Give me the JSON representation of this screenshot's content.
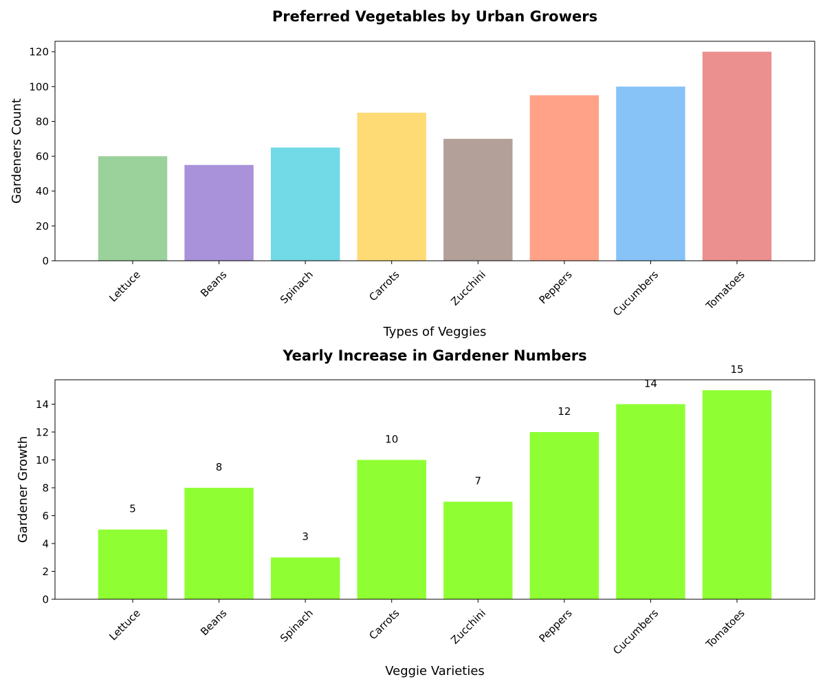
{
  "chart_data": [
    {
      "type": "bar",
      "title": "Preferred Vegetables by Urban Growers",
      "xlabel": "Types of Veggies",
      "ylabel": "Gardeners Count",
      "categories": [
        "Lettuce",
        "Beans",
        "Spinach",
        "Carrots",
        "Zucchini",
        "Peppers",
        "Cucumbers",
        "Tomatoes"
      ],
      "values": [
        60,
        55,
        65,
        85,
        70,
        95,
        100,
        120
      ],
      "colors": [
        "#9bd19b",
        "#a992d9",
        "#72d9e6",
        "#ffdb75",
        "#b3a199",
        "#ffa287",
        "#87c3f7",
        "#eb8f8f"
      ],
      "ylim": [
        0,
        126
      ],
      "yticks": [
        0,
        20,
        40,
        60,
        80,
        100,
        120
      ],
      "show_data_labels": false,
      "grid": false
    },
    {
      "type": "bar",
      "title": "Yearly Increase in Gardener Numbers",
      "xlabel": "Veggie Varieties",
      "ylabel": "Gardener Growth",
      "categories": [
        "Lettuce",
        "Beans",
        "Spinach",
        "Carrots",
        "Zucchini",
        "Peppers",
        "Cucumbers",
        "Tomatoes"
      ],
      "values": [
        5,
        8,
        3,
        10,
        7,
        12,
        14,
        15
      ],
      "colors": [
        "#8fff33"
      ],
      "ylim": [
        0,
        15.75
      ],
      "yticks": [
        0,
        2,
        4,
        6,
        8,
        10,
        12,
        14
      ],
      "show_data_labels": true,
      "grid": false
    }
  ]
}
